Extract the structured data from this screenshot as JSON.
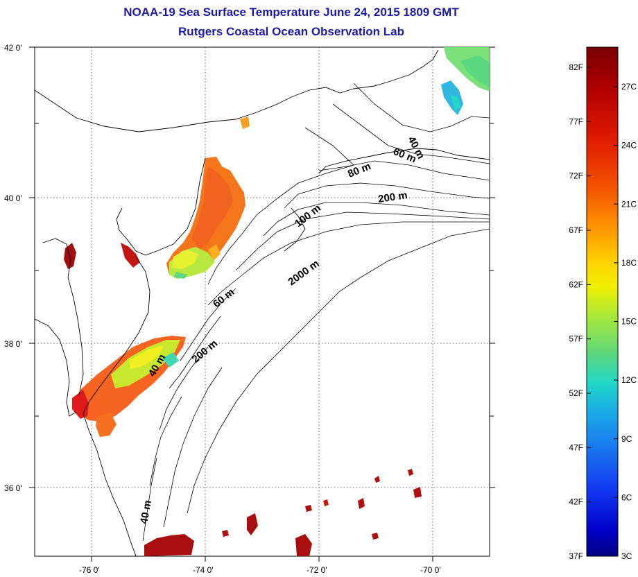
{
  "title": {
    "line1": "NOAA-19 Sea Surface Temperature June 24, 2015 1809 GMT",
    "line2": "Rutgers Coastal Ocean Observation Lab"
  },
  "map": {
    "lat_labels": [
      "42 0'",
      "40 0'",
      "38 0'",
      "36 0'"
    ],
    "lon_labels": [
      "-76 0'",
      "-74 0'",
      "-72 0'",
      "-70 0'"
    ],
    "contour_labels": [
      "40 m",
      "60 m",
      "80 m",
      "200 m",
      "100 m",
      "2000 m",
      "60 m",
      "40 m",
      "200 m",
      "40 m"
    ]
  },
  "colorbar": {
    "fahrenheit_labels": [
      "82F",
      "77F",
      "72F",
      "67F",
      "62F",
      "57F",
      "52F",
      "47F",
      "42F",
      "37F"
    ],
    "celsius_labels": [
      "27C",
      "24C",
      "21C",
      "18C",
      "15C",
      "12C",
      "9C",
      "6C",
      "3C"
    ],
    "colors": [
      "#7a0000",
      "#b00000",
      "#e01a00",
      "#f55500",
      "#ff9a00",
      "#ffd000",
      "#f0f000",
      "#a8e83a",
      "#5fd87a",
      "#20d8c8",
      "#1aa8e8",
      "#1a6ef0",
      "#1030f0",
      "#0000c8",
      "#000080"
    ]
  }
}
